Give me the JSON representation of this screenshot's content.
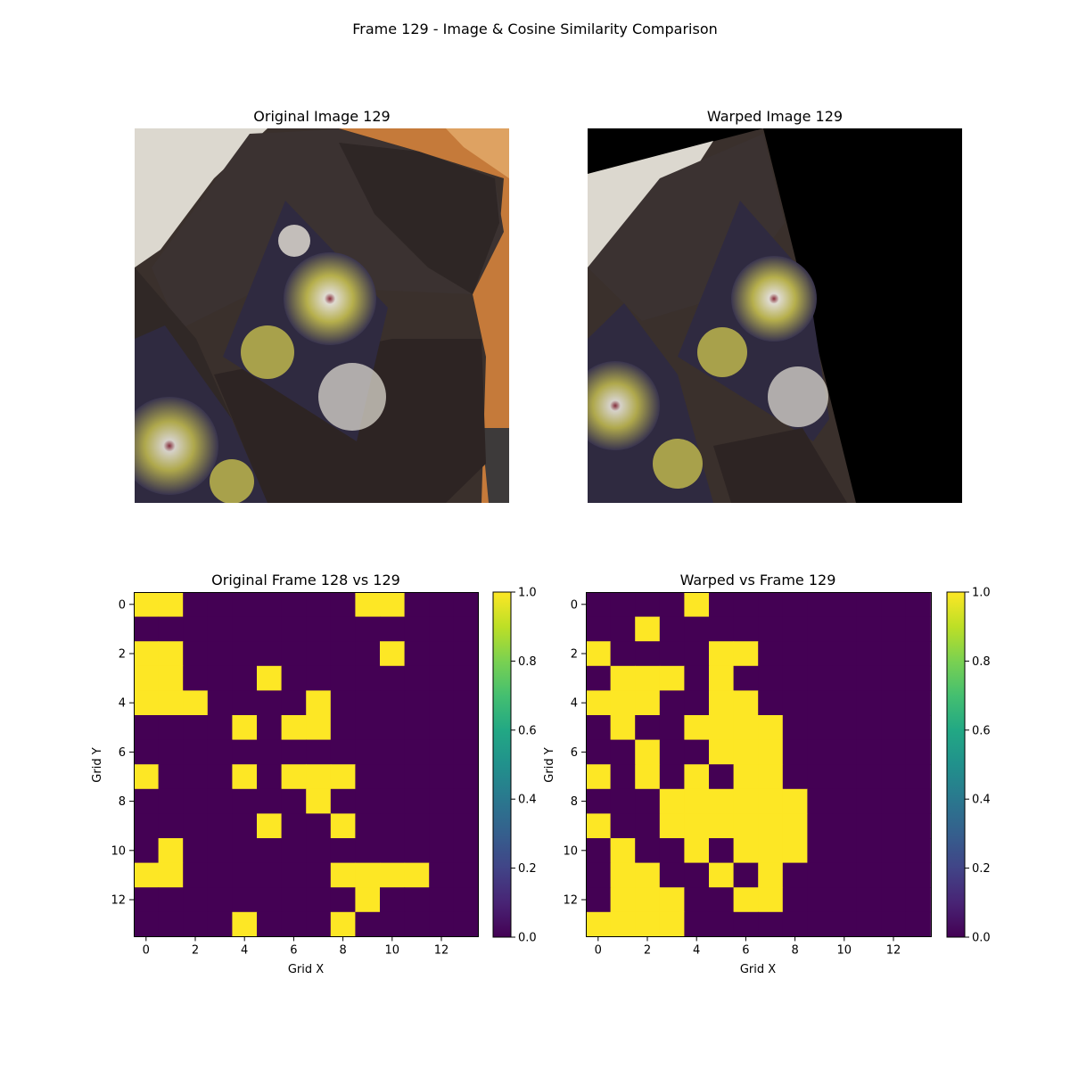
{
  "figure": {
    "suptitle": "Frame 129 - Image & Cosine Similarity Comparison"
  },
  "images": [
    {
      "title": "Original Image 129"
    },
    {
      "title": "Warped Image 129"
    }
  ],
  "colors": {
    "viridis_low": "#440154",
    "viridis_high": "#fde725",
    "black": "#000000"
  },
  "chart_data": [
    {
      "type": "heatmap",
      "title": "Original Frame 128 vs 129",
      "xlabel": "Grid X",
      "ylabel": "Grid Y",
      "xticks": [
        "0",
        "2",
        "4",
        "6",
        "8",
        "10",
        "12"
      ],
      "yticks": [
        "0",
        "2",
        "4",
        "6",
        "8",
        "10",
        "12"
      ],
      "colorbar_ticks": [
        "0.0",
        "0.2",
        "0.4",
        "0.6",
        "0.8",
        "1.0"
      ],
      "vmin": 0,
      "vmax": 1,
      "colormap": "viridis",
      "grid": [
        [
          1,
          1,
          0,
          0,
          0,
          0,
          0,
          0,
          0,
          1,
          1,
          0,
          0,
          0
        ],
        [
          0,
          0,
          0,
          0,
          0,
          0,
          0,
          0,
          0,
          0,
          0,
          0,
          0,
          0
        ],
        [
          1,
          1,
          0,
          0,
          0,
          0,
          0,
          0,
          0,
          0,
          1,
          0,
          0,
          0
        ],
        [
          1,
          1,
          0,
          0,
          0,
          1,
          0,
          0,
          0,
          0,
          0,
          0,
          0,
          0
        ],
        [
          1,
          1,
          1,
          0,
          0,
          0,
          0,
          1,
          0,
          0,
          0,
          0,
          0,
          0
        ],
        [
          0,
          0,
          0,
          0,
          1,
          0,
          1,
          1,
          0,
          0,
          0,
          0,
          0,
          0
        ],
        [
          0,
          0,
          0,
          0,
          0,
          0,
          0,
          0,
          0,
          0,
          0,
          0,
          0,
          0
        ],
        [
          1,
          0,
          0,
          0,
          1,
          0,
          1,
          1,
          1,
          0,
          0,
          0,
          0,
          0
        ],
        [
          0,
          0,
          0,
          0,
          0,
          0,
          0,
          1,
          0,
          0,
          0,
          0,
          0,
          0
        ],
        [
          0,
          0,
          0,
          0,
          0,
          1,
          0,
          0,
          1,
          0,
          0,
          0,
          0,
          0
        ],
        [
          0,
          1,
          0,
          0,
          0,
          0,
          0,
          0,
          0,
          0,
          0,
          0,
          0,
          0
        ],
        [
          1,
          1,
          0,
          0,
          0,
          0,
          0,
          0,
          1,
          1,
          1,
          1,
          0,
          0
        ],
        [
          0,
          0,
          0,
          0,
          0,
          0,
          0,
          0,
          0,
          1,
          0,
          0,
          0,
          0
        ],
        [
          0,
          0,
          0,
          0,
          1,
          0,
          0,
          0,
          1,
          0,
          0,
          0,
          0,
          0
        ]
      ]
    },
    {
      "type": "heatmap",
      "title": "Warped vs Frame 129",
      "xlabel": "Grid X",
      "ylabel": "Grid Y",
      "xticks": [
        "0",
        "2",
        "4",
        "6",
        "8",
        "10",
        "12"
      ],
      "yticks": [
        "0",
        "2",
        "4",
        "6",
        "8",
        "10",
        "12"
      ],
      "colorbar_ticks": [
        "0.0",
        "0.2",
        "0.4",
        "0.6",
        "0.8",
        "1.0"
      ],
      "vmin": 0,
      "vmax": 1,
      "colormap": "viridis",
      "grid": [
        [
          0,
          0,
          0,
          0,
          1,
          0,
          0,
          0,
          0,
          0,
          0,
          0,
          0,
          0
        ],
        [
          0,
          0,
          1,
          0,
          0,
          0,
          0,
          0,
          0,
          0,
          0,
          0,
          0,
          0
        ],
        [
          1,
          0,
          0,
          0,
          0,
          1,
          1,
          0,
          0,
          0,
          0,
          0,
          0,
          0
        ],
        [
          0,
          1,
          1,
          1,
          0,
          1,
          0,
          0,
          0,
          0,
          0,
          0,
          0,
          0
        ],
        [
          1,
          1,
          1,
          0,
          0,
          1,
          1,
          0,
          0,
          0,
          0,
          0,
          0,
          0
        ],
        [
          0,
          1,
          0,
          0,
          1,
          1,
          1,
          1,
          0,
          0,
          0,
          0,
          0,
          0
        ],
        [
          0,
          0,
          1,
          0,
          0,
          1,
          1,
          1,
          0,
          0,
          0,
          0,
          0,
          0
        ],
        [
          1,
          0,
          1,
          0,
          1,
          0,
          1,
          1,
          0,
          0,
          0,
          0,
          0,
          0
        ],
        [
          0,
          0,
          0,
          1,
          1,
          1,
          1,
          1,
          1,
          0,
          0,
          0,
          0,
          0
        ],
        [
          1,
          0,
          0,
          1,
          1,
          1,
          1,
          1,
          1,
          0,
          0,
          0,
          0,
          0
        ],
        [
          0,
          1,
          0,
          0,
          1,
          0,
          1,
          1,
          1,
          0,
          0,
          0,
          0,
          0
        ],
        [
          0,
          1,
          1,
          0,
          0,
          1,
          0,
          1,
          0,
          0,
          0,
          0,
          0,
          0
        ],
        [
          0,
          1,
          1,
          1,
          0,
          0,
          1,
          1,
          0,
          0,
          0,
          0,
          0,
          0
        ],
        [
          1,
          1,
          1,
          1,
          0,
          0,
          0,
          0,
          0,
          0,
          0,
          0,
          0,
          0
        ]
      ]
    }
  ]
}
